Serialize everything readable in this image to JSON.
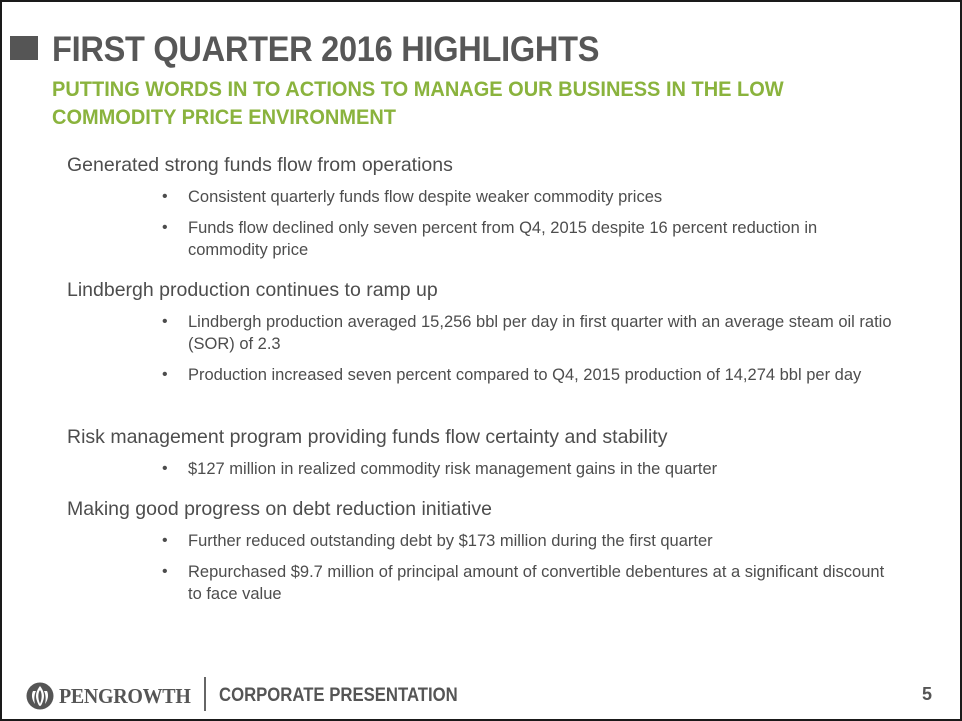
{
  "title": "FIRST QUARTER 2016 HIGHLIGHTS",
  "subtitle": "PUTTING WORDS IN TO ACTIONS TO MANAGE OUR BUSINESS IN THE LOW COMMODITY PRICE ENVIRONMENT",
  "sections": [
    {
      "heading": "Generated strong funds flow from operations",
      "bullets": [
        "Consistent quarterly funds flow despite weaker commodity prices",
        "Funds flow declined only seven percent from Q4, 2015 despite 16 percent reduction in commodity price"
      ]
    },
    {
      "heading": "Lindbergh production continues to ramp up",
      "bullets": [
        "Lindbergh production averaged 15,256 bbl per day in first quarter with an average steam oil ratio (SOR) of 2.3",
        "Production increased  seven percent compared to Q4, 2015 production of 14,274 bbl per day"
      ]
    },
    {
      "heading": "Risk management program providing funds flow certainty and stability",
      "bullets": [
        "$127 million in realized commodity risk management gains in the quarter"
      ]
    },
    {
      "heading": "Making good progress on debt reduction initiative",
      "bullets": [
        "Further reduced outstanding debt by $173 million during the first quarter",
        "Repurchased $9.7 million of principal amount of convertible debentures at a significant discount to face value"
      ]
    }
  ],
  "footer": {
    "company": "PENGROWTH",
    "label": "CORPORATE PRESENTATION",
    "page_number": "5",
    "logo_icon": "pengrowth-flame-icon"
  },
  "colors": {
    "title": "#575757",
    "subtitle_accent": "#8ab33d",
    "body_text": "#4d4d4d",
    "title_marker": "#555555"
  }
}
